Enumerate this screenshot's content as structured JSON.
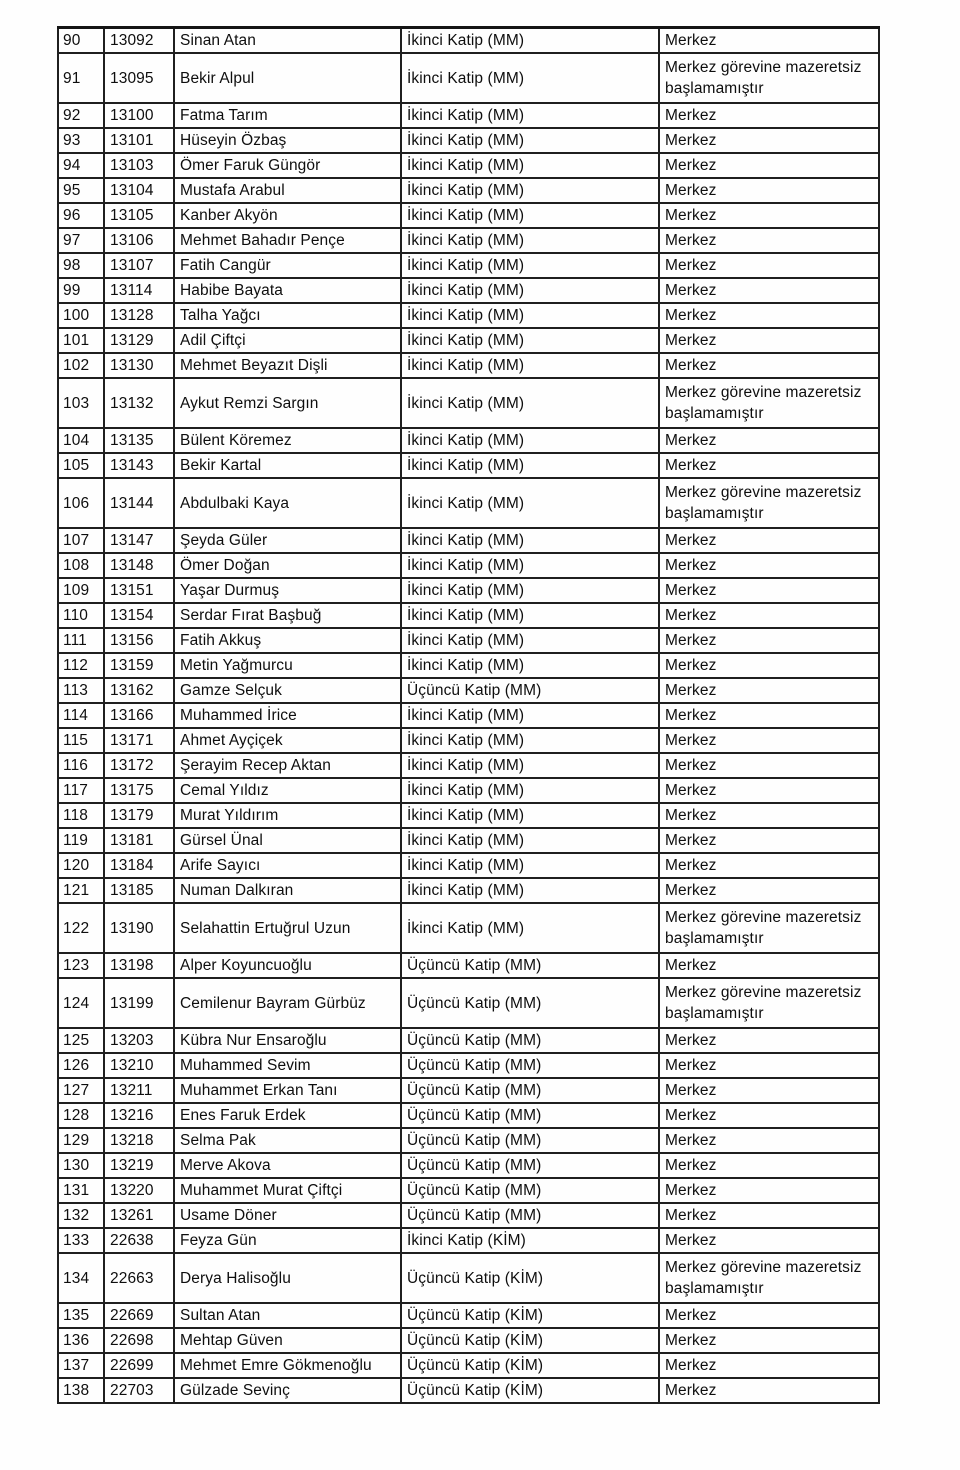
{
  "page": {
    "kind": "scanned-personnel-list",
    "colors": {
      "paper": "#fefefe",
      "border": "#1a1a1a",
      "text": "#0e0e0e"
    }
  },
  "table": {
    "rows": [
      {
        "no": "90",
        "registry_no": "13092",
        "name": "Sinan Atan",
        "title": "İkinci Katip (MM)",
        "status": "Merkez"
      },
      {
        "no": "91",
        "registry_no": "13095",
        "name": "Bekir Alpul",
        "title": "İkinci Katip (MM)",
        "status": "Merkez görevine mazeretsiz başlamamıştır"
      },
      {
        "no": "92",
        "registry_no": "13100",
        "name": "Fatma Tarım",
        "title": "İkinci Katip (MM)",
        "status": "Merkez"
      },
      {
        "no": "93",
        "registry_no": "13101",
        "name": "Hüseyin Özbaş",
        "title": "İkinci Katip (MM)",
        "status": "Merkez"
      },
      {
        "no": "94",
        "registry_no": "13103",
        "name": "Ömer Faruk Güngör",
        "title": "İkinci Katip (MM)",
        "status": "Merkez"
      },
      {
        "no": "95",
        "registry_no": "13104",
        "name": "Mustafa Arabul",
        "title": "İkinci Katip (MM)",
        "status": "Merkez"
      },
      {
        "no": "96",
        "registry_no": "13105",
        "name": "Kanber Akyön",
        "title": "İkinci Katip (MM)",
        "status": "Merkez"
      },
      {
        "no": "97",
        "registry_no": "13106",
        "name": "Mehmet Bahadır Pençe",
        "title": "İkinci Katip (MM)",
        "status": "Merkez"
      },
      {
        "no": "98",
        "registry_no": "13107",
        "name": "Fatih Cangür",
        "title": "İkinci Katip (MM)",
        "status": "Merkez"
      },
      {
        "no": "99",
        "registry_no": "13114",
        "name": "Habibe Bayata",
        "title": "İkinci Katip (MM)",
        "status": "Merkez"
      },
      {
        "no": "100",
        "registry_no": "13128",
        "name": "Talha Yağcı",
        "title": "İkinci Katip (MM)",
        "status": "Merkez"
      },
      {
        "no": "101",
        "registry_no": "13129",
        "name": "Adil Çiftçi",
        "title": "İkinci Katip (MM)",
        "status": "Merkez"
      },
      {
        "no": "102",
        "registry_no": "13130",
        "name": "Mehmet Beyazıt Dişli",
        "title": "İkinci Katip (MM)",
        "status": "Merkez"
      },
      {
        "no": "103",
        "registry_no": "13132",
        "name": "Aykut Remzi Sargın",
        "title": "İkinci Katip (MM)",
        "status": "Merkez görevine mazeretsiz başlamamıştır"
      },
      {
        "no": "104",
        "registry_no": "13135",
        "name": "Bülent Köremez",
        "title": "İkinci Katip (MM)",
        "status": "Merkez"
      },
      {
        "no": "105",
        "registry_no": "13143",
        "name": "Bekir Kartal",
        "title": "İkinci Katip (MM)",
        "status": "Merkez"
      },
      {
        "no": "106",
        "registry_no": "13144",
        "name": "Abdulbaki Kaya",
        "title": "İkinci Katip (MM)",
        "status": "Merkez görevine mazeretsiz başlamamıştır"
      },
      {
        "no": "107",
        "registry_no": "13147",
        "name": "Şeyda Güler",
        "title": "İkinci Katip (MM)",
        "status": "Merkez"
      },
      {
        "no": "108",
        "registry_no": "13148",
        "name": "Ömer Doğan",
        "title": "İkinci Katip (MM)",
        "status": "Merkez"
      },
      {
        "no": "109",
        "registry_no": "13151",
        "name": "Yaşar Durmuş",
        "title": "İkinci Katip (MM)",
        "status": "Merkez"
      },
      {
        "no": "110",
        "registry_no": "13154",
        "name": "Serdar Fırat Başbuğ",
        "title": "İkinci Katip (MM)",
        "status": "Merkez"
      },
      {
        "no": "111",
        "registry_no": "13156",
        "name": "Fatih Akkuş",
        "title": "İkinci Katip (MM)",
        "status": "Merkez"
      },
      {
        "no": "112",
        "registry_no": "13159",
        "name": "Metin Yağmurcu",
        "title": "İkinci Katip (MM)",
        "status": "Merkez"
      },
      {
        "no": "113",
        "registry_no": "13162",
        "name": "Gamze Selçuk",
        "title": "Üçüncü Katip (MM)",
        "status": "Merkez"
      },
      {
        "no": "114",
        "registry_no": "13166",
        "name": "Muhammed İrice",
        "title": "İkinci Katip (MM)",
        "status": "Merkez"
      },
      {
        "no": "115",
        "registry_no": "13171",
        "name": "Ahmet Ayçiçek",
        "title": "İkinci Katip (MM)",
        "status": "Merkez"
      },
      {
        "no": "116",
        "registry_no": "13172",
        "name": "Şerayim Recep Aktan",
        "title": "İkinci Katip (MM)",
        "status": "Merkez"
      },
      {
        "no": "117",
        "registry_no": "13175",
        "name": "Cemal Yıldız",
        "title": "İkinci Katip (MM)",
        "status": "Merkez"
      },
      {
        "no": "118",
        "registry_no": "13179",
        "name": "Murat Yıldırım",
        "title": "İkinci Katip (MM)",
        "status": "Merkez"
      },
      {
        "no": "119",
        "registry_no": "13181",
        "name": "Gürsel Ünal",
        "title": "İkinci Katip (MM)",
        "status": "Merkez"
      },
      {
        "no": "120",
        "registry_no": "13184",
        "name": "Arife Sayıcı",
        "title": "İkinci Katip (MM)",
        "status": "Merkez"
      },
      {
        "no": "121",
        "registry_no": "13185",
        "name": "Numan Dalkıran",
        "title": "İkinci Katip (MM)",
        "status": "Merkez"
      },
      {
        "no": "122",
        "registry_no": "13190",
        "name": "Selahattin Ertuğrul Uzun",
        "title": "İkinci Katip (MM)",
        "status": "Merkez görevine mazeretsiz başlamamıştır"
      },
      {
        "no": "123",
        "registry_no": "13198",
        "name": "Alper Koyuncuoğlu",
        "title": "Üçüncü Katip (MM)",
        "status": "Merkez"
      },
      {
        "no": "124",
        "registry_no": "13199",
        "name": "Cemilenur Bayram Gürbüz",
        "title": "Üçüncü Katip (MM)",
        "status": "Merkez görevine mazeretsiz başlamamıştır"
      },
      {
        "no": "125",
        "registry_no": "13203",
        "name": "Kübra Nur Ensaroğlu",
        "title": "Üçüncü Katip (MM)",
        "status": "Merkez"
      },
      {
        "no": "126",
        "registry_no": "13210",
        "name": "Muhammed Sevim",
        "title": "Üçüncü Katip (MM)",
        "status": "Merkez"
      },
      {
        "no": "127",
        "registry_no": "13211",
        "name": "Muhammet Erkan Tanı",
        "title": "Üçüncü Katip (MM)",
        "status": "Merkez"
      },
      {
        "no": "128",
        "registry_no": "13216",
        "name": "Enes Faruk Erdek",
        "title": "Üçüncü Katip (MM)",
        "status": "Merkez"
      },
      {
        "no": "129",
        "registry_no": "13218",
        "name": "Selma Pak",
        "title": "Üçüncü Katip (MM)",
        "status": "Merkez"
      },
      {
        "no": "130",
        "registry_no": "13219",
        "name": "Merve Akova",
        "title": "Üçüncü Katip (MM)",
        "status": "Merkez"
      },
      {
        "no": "131",
        "registry_no": "13220",
        "name": "Muhammet Murat Çiftçi",
        "title": "Üçüncü Katip (MM)",
        "status": "Merkez"
      },
      {
        "no": "132",
        "registry_no": "13261",
        "name": "Usame Döner",
        "title": "Üçüncü Katip (MM)",
        "status": "Merkez"
      },
      {
        "no": "133",
        "registry_no": "22638",
        "name": "Feyza Gün",
        "title": "İkinci Katip (KİM)",
        "status": "Merkez"
      },
      {
        "no": "134",
        "registry_no": "22663",
        "name": "Derya Halisoğlu",
        "title": "Üçüncü Katip (KİM)",
        "status": "Merkez görevine mazeretsiz başlamamıştır"
      },
      {
        "no": "135",
        "registry_no": "22669",
        "name": "Sultan Atan",
        "title": "Üçüncü Katip (KİM)",
        "status": "Merkez"
      },
      {
        "no": "136",
        "registry_no": "22698",
        "name": "Mehtap Güven",
        "title": "Üçüncü Katip (KİM)",
        "status": "Merkez"
      },
      {
        "no": "137",
        "registry_no": "22699",
        "name": "Mehmet Emre Gökmenoğlu",
        "title": "Üçüncü Katip (KİM)",
        "status": "Merkez"
      },
      {
        "no": "138",
        "registry_no": "22703",
        "name": "Gülzade Sevinç",
        "title": "Üçüncü Katip (KİM)",
        "status": "Merkez"
      }
    ]
  }
}
